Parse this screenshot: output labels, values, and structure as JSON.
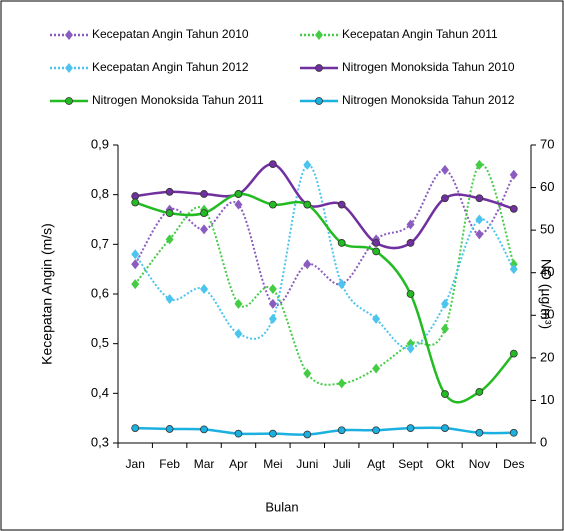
{
  "chart_data": {
    "type": "line",
    "x_label": "Bulan",
    "y_label": "Kecepatan Angin (m/s)",
    "y2_label": "NO (µg/m³)",
    "categories": [
      "Jan",
      "Feb",
      "Mar",
      "Apr",
      "Mei",
      "Juni",
      "Juli",
      "Agt",
      "Sept",
      "Okt",
      "Nov",
      "Des"
    ],
    "ylim": [
      0.3,
      0.9
    ],
    "yticks": [
      {
        "value": 0.3,
        "label": "0,3"
      },
      {
        "value": 0.4,
        "label": "0,4"
      },
      {
        "value": 0.5,
        "label": "0,5"
      },
      {
        "value": 0.6,
        "label": "0,6"
      },
      {
        "value": 0.7,
        "label": "0,7"
      },
      {
        "value": 0.8,
        "label": "0,8"
      },
      {
        "value": 0.9,
        "label": "0,9"
      }
    ],
    "y2lim": [
      0,
      70
    ],
    "y2ticks": [
      0,
      10,
      20,
      30,
      40,
      50,
      60,
      70
    ],
    "series": [
      {
        "name": "Kecepatan Angin Tahun 2010",
        "color": "#8a5cc0",
        "dotted": true,
        "values": [
          0.66,
          0.77,
          0.73,
          0.78,
          0.58,
          0.66,
          0.62,
          0.71,
          0.74,
          0.85,
          0.72,
          0.84
        ]
      },
      {
        "name": "Kecepatan Angin Tahun 2011",
        "color": "#44cc44",
        "dotted": true,
        "values": [
          0.62,
          0.71,
          0.77,
          0.58,
          0.61,
          0.44,
          0.42,
          0.45,
          0.5,
          0.53,
          0.86,
          0.66
        ]
      },
      {
        "name": "Kecepatan Angin Tahun 2012",
        "color": "#4cc4ee",
        "dotted": true,
        "values": [
          0.68,
          0.59,
          0.61,
          0.52,
          0.55,
          0.86,
          0.62,
          0.55,
          0.49,
          0.58,
          0.75,
          0.65
        ]
      },
      {
        "name": "Nitrogen Monoksida Tahun 2010",
        "color": "#7030a0",
        "dotted": false,
        "axis": "y2",
        "values": [
          58,
          59,
          58.5,
          58.5,
          65.5,
          56,
          56,
          47,
          47,
          57.5,
          57.5,
          55
        ]
      },
      {
        "name": "Nitrogen Monoksida Tahun 2011",
        "color": "#22bb22",
        "dotted": false,
        "axis": "y2",
        "values": [
          56.5,
          54,
          54,
          58.5,
          56,
          56,
          47,
          45,
          35,
          11.5,
          12,
          21
        ]
      },
      {
        "name": "Nitrogen Monoksida Tahun 2012",
        "color": "#1ab0e0",
        "dotted": false,
        "axis": "y2",
        "values": [
          3.5,
          3.3,
          3.2,
          2.2,
          2.2,
          2,
          3,
          3,
          3.5,
          3.5,
          2.4,
          2.4
        ]
      }
    ]
  }
}
